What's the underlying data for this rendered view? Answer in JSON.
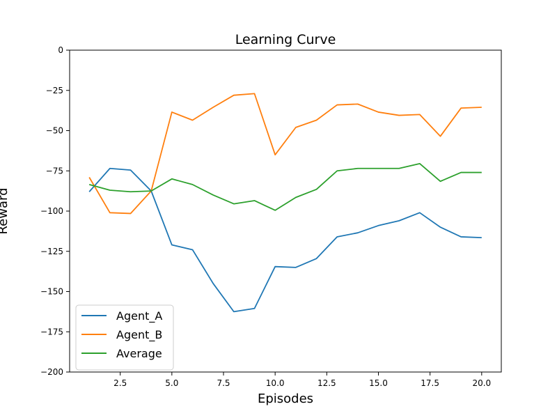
{
  "chart_data": {
    "type": "line",
    "title": "Learning Curve",
    "xlabel": "Episodes",
    "ylabel": "Reward",
    "xlim": [
      0.05,
      20.95
    ],
    "ylim": [
      -200,
      0
    ],
    "xticks": [
      2.5,
      5.0,
      7.5,
      10.0,
      12.5,
      15.0,
      17.5,
      20.0
    ],
    "xtick_labels": [
      "2.5",
      "5.0",
      "7.5",
      "10.0",
      "12.5",
      "15.0",
      "17.5",
      "20.0"
    ],
    "yticks": [
      0,
      -25,
      -50,
      -75,
      -100,
      -125,
      -150,
      -175,
      -200
    ],
    "ytick_labels": [
      "0",
      "−25",
      "−50",
      "−75",
      "−100",
      "−125",
      "−150",
      "−175",
      "−200"
    ],
    "grid": false,
    "legend_position": "lower-left",
    "x": [
      1,
      2,
      3,
      4,
      5,
      6,
      7,
      8,
      9,
      10,
      11,
      12,
      13,
      14,
      15,
      16,
      17,
      18,
      19,
      20
    ],
    "series": [
      {
        "name": "Agent_A",
        "color": "#1f77b4",
        "values": [
          -88,
          -73.5,
          -74.5,
          -87.5,
          -121,
          -124,
          -145,
          -162.5,
          -160.5,
          -134.5,
          -135,
          -129.5,
          -116,
          -113.5,
          -109,
          -106,
          -101,
          -110,
          -116,
          -116.5
        ]
      },
      {
        "name": "Agent_B",
        "color": "#ff7f0e",
        "values": [
          -79,
          -101,
          -101.5,
          -87.5,
          -38.5,
          -43.5,
          -35.5,
          -28,
          -27,
          -65,
          -48,
          -43.5,
          -34,
          -33.5,
          -38.5,
          -40.5,
          -40,
          -53.5,
          -36,
          -35.5
        ]
      },
      {
        "name": "Average",
        "color": "#2ca02c",
        "values": [
          -83.5,
          -87,
          -88,
          -87.5,
          -80,
          -83.5,
          -90,
          -95.5,
          -93.5,
          -99.5,
          -91.5,
          -86.5,
          -75,
          -73.5,
          -73.5,
          -73.5,
          -70.5,
          -81.5,
          -76,
          -76
        ]
      }
    ]
  }
}
